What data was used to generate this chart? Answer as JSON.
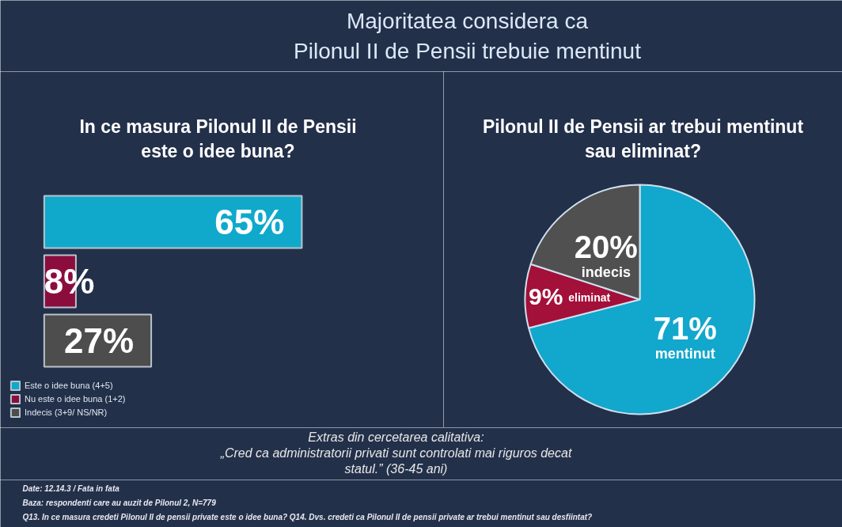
{
  "chart_data": [
    {
      "type": "other",
      "title": "Majoritatea considera ca Pilonul II de Pensii trebuie mentinut"
    },
    {
      "type": "bar",
      "orientation": "horizontal",
      "stacked": true,
      "title": "In ce masura Pilonul II de Pensii este o idee buna?",
      "categories": [
        null,
        null,
        null
      ],
      "series": [
        {
          "name": "Este o idee buna (4+5)",
          "color": "#10a9cc",
          "values": [
            65,
            null,
            null
          ],
          "value_labels": [
            "65%",
            null,
            null
          ]
        },
        {
          "name": "Nu este o idee buna (1+2)",
          "color": "#8b0d3e",
          "values": [
            null,
            8,
            null
          ],
          "value_labels": [
            null,
            "8%",
            null
          ]
        },
        {
          "name": "Indecis (3+9/ NS/NR)",
          "color": "#4d4d4d",
          "values": [
            null,
            null,
            27
          ],
          "value_labels": [
            null,
            null,
            "27%"
          ]
        }
      ],
      "legend": "bottom left",
      "tick_labels": false
    },
    {
      "type": "pie",
      "title": "Pilonul II de Pensii ar trebui mentinut sau eliminat?",
      "categories": [
        "mentinut",
        "eliminat",
        "indecis"
      ],
      "values": [
        71,
        9,
        20
      ],
      "colors": [
        "#12a7cc",
        "#a3103a",
        "#505050"
      ],
      "value_labels": [
        "71%",
        "9%",
        "20%"
      ]
    },
    {
      "type": "other",
      "annotations": [
        "Extras din cercetarea calitativa:",
        "„Cred ca administratorii privati sunt controlati mai riguros decat statul.” (36-45 ani)"
      ]
    },
    {
      "type": "other",
      "annotations": [
        "Date: 12.14.3 / Fata in fata",
        "Baza: respondenti care au auzit de Pilonul 2, N=779",
        "Q13. In ce masura credeti Pilonul II de pensii private este o idee buna? Q14. Dvs. credeti ca Pilonul II de pensii private ar trebui mentinut sau desfiintat?"
      ]
    }
  ]
}
